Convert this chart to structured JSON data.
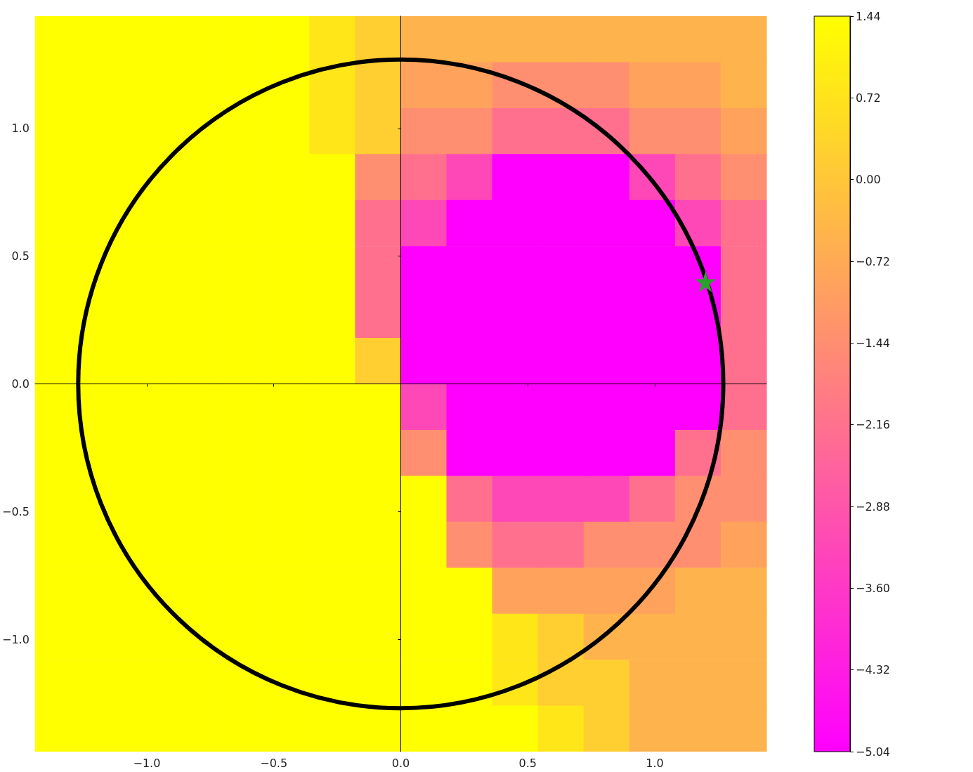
{
  "chart_data": {
    "type": "heatmap",
    "xlim": [
      -1.44,
      1.44
    ],
    "ylim": [
      -1.44,
      1.44
    ],
    "xticks": [
      {
        "value": -1,
        "label": "−1.0"
      },
      {
        "value": -0.5,
        "label": "−0.5"
      },
      {
        "value": 0,
        "label": "0.0"
      },
      {
        "value": 0.5,
        "label": "0.5"
      },
      {
        "value": 1,
        "label": "1.0"
      }
    ],
    "yticks": [
      {
        "value": -1,
        "label": "−1.0"
      },
      {
        "value": -0.5,
        "label": "−0.5"
      },
      {
        "value": 0,
        "label": "0.0"
      },
      {
        "value": 0.5,
        "label": "0.5"
      },
      {
        "value": 1,
        "label": "1.0"
      }
    ],
    "clim": [
      -5.04,
      1.44
    ],
    "cticks": [
      {
        "value": 1.44,
        "label": "1.44"
      },
      {
        "value": 0.72,
        "label": "0.72"
      },
      {
        "value": 0,
        "label": "0.00"
      },
      {
        "value": -0.72,
        "label": "−0.72"
      },
      {
        "value": -1.44,
        "label": "−1.44"
      },
      {
        "value": -2.16,
        "label": "−2.16"
      },
      {
        "value": -2.88,
        "label": "−2.88"
      },
      {
        "value": -3.6,
        "label": "−3.60"
      },
      {
        "value": -4.32,
        "label": "−4.32"
      },
      {
        "value": -5.04,
        "label": "−5.04"
      }
    ],
    "colors": [
      "#ff00ff",
      "#ffff00"
    ],
    "cells": [
      [
        1.44,
        1.44,
        1.44,
        1.44,
        1.44,
        1.44,
        0.8,
        0.2,
        -0.5,
        -0.5,
        -0.5,
        -0.5,
        -0.5,
        -0.5,
        -0.5,
        -0.5
      ],
      [
        1.44,
        1.44,
        1.44,
        1.44,
        1.44,
        1.44,
        0.8,
        0.2,
        -0.9,
        -0.9,
        -1.4,
        -1.4,
        -1.4,
        -0.9,
        -0.9,
        -0.5
      ],
      [
        1.44,
        1.44,
        1.44,
        1.44,
        1.44,
        1.44,
        0.8,
        0.2,
        -1.4,
        -1.4,
        -2.2,
        -2.2,
        -2.2,
        -1.4,
        -1.4,
        -0.9
      ],
      [
        1.44,
        1.44,
        1.44,
        1.44,
        1.44,
        1.44,
        1.44,
        -1.4,
        -2.2,
        -3.2,
        -5.04,
        -5.04,
        -5.04,
        -3.2,
        -2.2,
        -1.4
      ],
      [
        1.44,
        1.44,
        1.44,
        1.44,
        1.44,
        1.44,
        1.44,
        -2.2,
        -3.2,
        -5.04,
        -5.04,
        -5.04,
        -5.04,
        -5.04,
        -3.2,
        -2.2
      ],
      [
        1.44,
        1.44,
        1.44,
        1.44,
        1.44,
        1.44,
        1.44,
        -2.2,
        -5.04,
        -5.04,
        -5.04,
        -5.04,
        -5.04,
        -5.04,
        -5.04,
        -2.2
      ],
      [
        1.44,
        1.44,
        1.44,
        1.44,
        1.44,
        1.44,
        1.44,
        -2.2,
        -5.04,
        -5.04,
        -5.04,
        -5.04,
        -5.04,
        -5.04,
        -5.04,
        -2.2
      ],
      [
        1.44,
        1.44,
        1.44,
        1.44,
        1.44,
        1.44,
        1.44,
        0.2,
        -5.04,
        -5.04,
        -5.04,
        -5.04,
        -5.04,
        -5.04,
        -5.04,
        -2.2
      ],
      [
        1.44,
        1.44,
        1.44,
        1.44,
        1.44,
        1.44,
        1.44,
        1.44,
        -3.2,
        -5.04,
        -5.04,
        -5.04,
        -5.04,
        -5.04,
        -5.04,
        -2.2
      ],
      [
        1.44,
        1.44,
        1.44,
        1.44,
        1.44,
        1.44,
        1.44,
        1.44,
        -1.4,
        -5.04,
        -5.04,
        -5.04,
        -5.04,
        -5.04,
        -2.2,
        -1.4
      ],
      [
        1.44,
        1.44,
        1.44,
        1.44,
        1.44,
        1.44,
        1.44,
        1.44,
        1.44,
        -2.2,
        -3.2,
        -3.2,
        -3.2,
        -2.2,
        -1.4,
        -1.4
      ],
      [
        1.44,
        1.44,
        1.44,
        1.44,
        1.44,
        1.44,
        1.44,
        1.44,
        1.44,
        -1.4,
        -2.2,
        -2.2,
        -1.4,
        -1.4,
        -1.4,
        -0.9
      ],
      [
        1.44,
        1.44,
        1.44,
        1.44,
        1.44,
        1.44,
        1.44,
        1.44,
        1.44,
        1.44,
        -0.9,
        -0.9,
        -0.9,
        -0.9,
        -0.5,
        -0.5
      ],
      [
        1.44,
        1.44,
        1.44,
        1.44,
        1.44,
        1.44,
        1.44,
        1.44,
        1.44,
        1.44,
        0.8,
        0.2,
        -0.5,
        -0.5,
        -0.5,
        -0.5
      ],
      [
        1.44,
        1.44,
        1.44,
        1.44,
        1.44,
        1.44,
        1.44,
        1.44,
        1.44,
        1.44,
        0.8,
        0.2,
        0.2,
        -0.5,
        -0.5,
        -0.5
      ],
      [
        1.44,
        1.44,
        1.44,
        1.44,
        1.44,
        1.44,
        1.44,
        1.44,
        1.44,
        1.44,
        1.44,
        0.8,
        0.2,
        -0.5,
        -0.5,
        -0.5
      ]
    ],
    "series": [
      {
        "type": "scatter",
        "color": "#2ca02c",
        "marker": "star",
        "x": [
          1.2
        ],
        "values": [
          0.4
        ]
      }
    ]
  }
}
